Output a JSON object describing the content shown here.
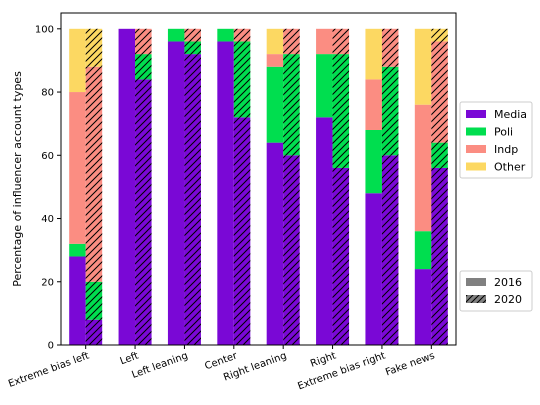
{
  "chart_data": {
    "type": "bar",
    "subtype": "stacked-grouped",
    "ylabel": "Percentage of influencer account types",
    "xlabel": "",
    "ylim": [
      0,
      105
    ],
    "yticks": [
      0,
      20,
      40,
      60,
      80,
      100
    ],
    "grid": false,
    "categories": [
      "Extreme bias left",
      "Left",
      "Left leaning",
      "Center",
      "Right leaning",
      "Right",
      "Extreme bias right",
      "Fake news"
    ],
    "stack_order": [
      "Media",
      "Poli",
      "Indp",
      "Other"
    ],
    "colors": {
      "Media": "#7a08d6",
      "Poli": "#00de4f",
      "Indp": "#fb8d82",
      "Other": "#fcd862"
    },
    "years": [
      {
        "name": "2016",
        "hatch": "none",
        "values": {
          "Media": [
            28,
            100,
            96,
            96,
            64,
            72,
            48,
            24
          ],
          "Poli": [
            4,
            0,
            4,
            4,
            24,
            20,
            20,
            12
          ],
          "Indp": [
            48,
            0,
            0,
            0,
            4,
            8,
            16,
            40
          ],
          "Other": [
            20,
            0,
            0,
            0,
            8,
            0,
            16,
            24
          ]
        }
      },
      {
        "name": "2020",
        "hatch": "diagonal",
        "values": {
          "Media": [
            8,
            84,
            92,
            72,
            60,
            56,
            60,
            56
          ],
          "Poli": [
            12,
            8,
            4,
            24,
            32,
            36,
            28,
            8
          ],
          "Indp": [
            68,
            8,
            4,
            4,
            8,
            8,
            12,
            32
          ],
          "Other": [
            12,
            0,
            0,
            0,
            0,
            0,
            0,
            4
          ]
        }
      }
    ],
    "legend": {
      "type_entries": [
        "Media",
        "Poli",
        "Indp",
        "Other"
      ],
      "year_entries": [
        "2016",
        "2020"
      ],
      "placement": "outside-right"
    }
  }
}
